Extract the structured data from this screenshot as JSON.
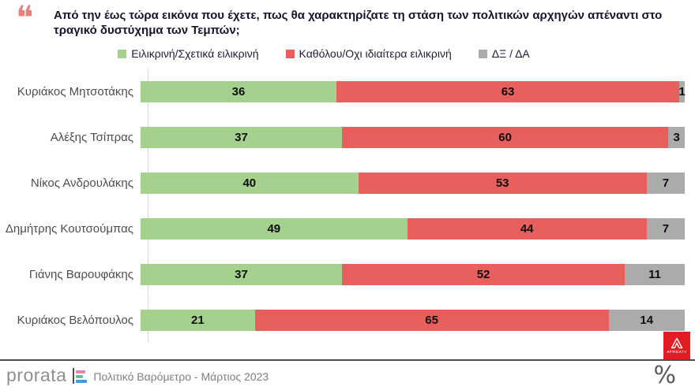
{
  "header": {
    "quote_glyph": "❝",
    "title": "Από την έως τώρα εικόνα που έχετε, πως θα χαρακτηρίζατε τη στάση των πολιτικών αρχηγών απέναντι στο τραγικό δυστύχημα των Τεμπών;"
  },
  "chart_data": {
    "type": "bar",
    "orientation": "horizontal-stacked",
    "title": "",
    "xlabel": "",
    "ylabel": "",
    "xlim": [
      0,
      100
    ],
    "grid": false,
    "legend_position": "top-center",
    "value_labels": true,
    "categories": [
      "Κυριάκος Μητσοτάκης",
      "Αλέξης Τσίπρας",
      "Νίκος Ανδρουλάκης",
      "Δημήτρης Κουτσούμπας",
      "Γιάνης Βαρουφάκης",
      "Κυριάκος Βελόπουλος"
    ],
    "series": [
      {
        "name": "Ειλικρινή/Σχετικά ειλικρινή",
        "color": "#a5d18e",
        "values": [
          36,
          37,
          40,
          49,
          37,
          21
        ]
      },
      {
        "name": "Καθόλου/Οχι ιδιαίτερα ειλικρινή",
        "color": "#e8605e",
        "values": [
          63,
          60,
          53,
          44,
          52,
          65
        ]
      },
      {
        "name": "ΔΞ / ΔΑ",
        "color": "#ababab",
        "values": [
          1,
          3,
          7,
          7,
          11,
          14
        ]
      }
    ]
  },
  "colors": {
    "title_text": "#15152e",
    "category_label": "#4d4d4d",
    "quote_mark": "#e5827d",
    "axis_line": "#d6d6d6",
    "footer_line": "#4d4d4d",
    "attica_red": "#e31b23",
    "brand_pink": "#ef7fb2",
    "brand_green": "#66c18c",
    "brand_blue": "#4a97d8"
  },
  "watermark": {
    "logo_letter": "A",
    "logo_caption_main": "ATTICA",
    "logo_caption_sub": "TV"
  },
  "footer": {
    "brand": "prorata",
    "caption": "Πολιτικό Βαρόμετρο - Μάρτιος 2023",
    "percent_symbol": "%"
  }
}
